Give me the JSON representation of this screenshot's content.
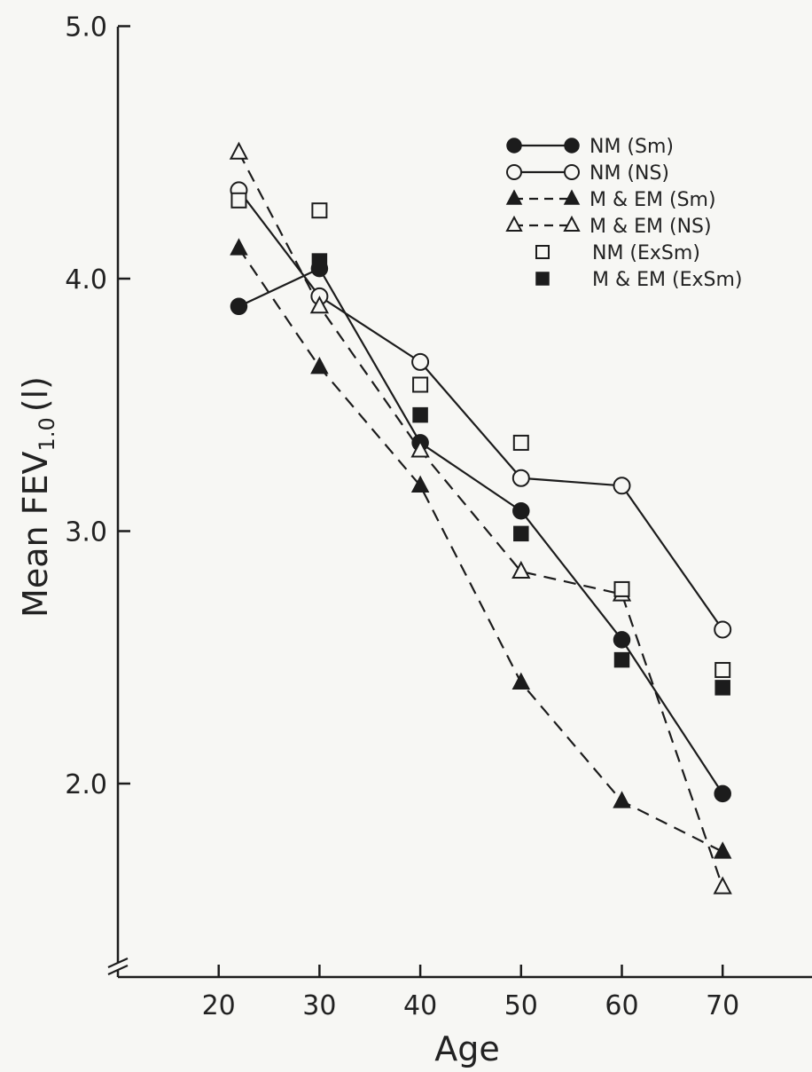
{
  "chart_data": {
    "type": "line",
    "xlabel": "Age",
    "ylabel": "Mean FEV",
    "ylabel_sub": "1.0",
    "ylabel_unit": "(l)",
    "xlim": [
      10,
      80
    ],
    "ylim": [
      1.5,
      5.0
    ],
    "x_ticks": [
      {
        "value": 20,
        "label": "20"
      },
      {
        "value": 30,
        "label": "30"
      },
      {
        "value": 40,
        "label": "40"
      },
      {
        "value": 50,
        "label": "50"
      },
      {
        "value": 60,
        "label": "60"
      },
      {
        "value": 70,
        "label": "70"
      }
    ],
    "y_ticks": [
      {
        "value": 2.0,
        "label": "2.0"
      },
      {
        "value": 3.0,
        "label": "3.0"
      },
      {
        "value": 4.0,
        "label": "4.0"
      },
      {
        "value": 5.0,
        "label": "5.0"
      }
    ],
    "axis_break": true,
    "grid": false,
    "legend_position": "top-right",
    "series": [
      {
        "name": "NM (Sm)",
        "marker": "filled-circle",
        "line": "solid",
        "points": [
          [
            22,
            3.89
          ],
          [
            30,
            4.04
          ],
          [
            40,
            3.35
          ],
          [
            50,
            3.08
          ],
          [
            60,
            2.57
          ],
          [
            70,
            1.96
          ]
        ]
      },
      {
        "name": "NM (NS)",
        "marker": "open-circle",
        "line": "solid",
        "points": [
          [
            22,
            4.35
          ],
          [
            30,
            3.93
          ],
          [
            40,
            3.67
          ],
          [
            50,
            3.21
          ],
          [
            60,
            3.18
          ],
          [
            70,
            2.61
          ]
        ]
      },
      {
        "name": "M & EM (Sm)",
        "marker": "filled-triangle",
        "line": "dashed",
        "points": [
          [
            22,
            4.12
          ],
          [
            30,
            3.65
          ],
          [
            40,
            3.18
          ],
          [
            50,
            2.4
          ],
          [
            60,
            1.93
          ],
          [
            70,
            1.73
          ]
        ]
      },
      {
        "name": "M & EM (NS)",
        "marker": "open-triangle",
        "line": "dashed",
        "points": [
          [
            22,
            4.5
          ],
          [
            30,
            3.89
          ],
          [
            40,
            3.32
          ],
          [
            50,
            2.84
          ],
          [
            60,
            2.75
          ],
          [
            70,
            1.59
          ]
        ]
      },
      {
        "name": "NM (ExSm)",
        "marker": "open-square",
        "line": "none",
        "points": [
          [
            22,
            4.31
          ],
          [
            30,
            4.27
          ],
          [
            40,
            3.58
          ],
          [
            50,
            3.35
          ],
          [
            60,
            2.77
          ],
          [
            70,
            2.45
          ]
        ]
      },
      {
        "name": "M & EM (ExSm)",
        "marker": "filled-square",
        "line": "none",
        "points": [
          [
            30,
            4.07
          ],
          [
            40,
            3.46
          ],
          [
            50,
            2.99
          ],
          [
            60,
            2.49
          ],
          [
            70,
            2.38
          ]
        ]
      }
    ]
  }
}
